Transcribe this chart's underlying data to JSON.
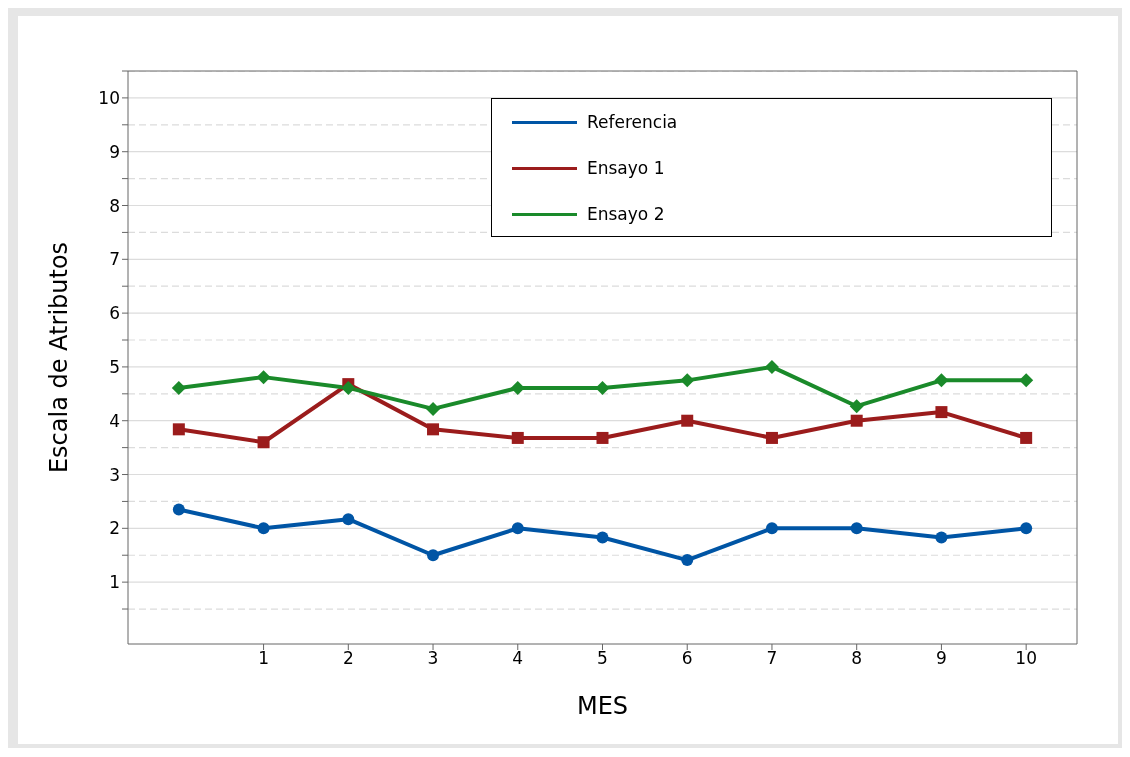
{
  "chart_data": {
    "type": "line",
    "xlabel": "MES",
    "ylabel": "Escala de Atributos",
    "x": [
      0,
      1,
      2,
      3,
      4,
      5,
      6,
      7,
      8,
      9,
      10
    ],
    "xlim": [
      -0.6,
      10.6
    ],
    "xticks": [
      1,
      2,
      3,
      4,
      5,
      6,
      7,
      8,
      9,
      10
    ],
    "ylim": [
      -0.15,
      10.5
    ],
    "yticks": [
      {
        "value": 0.5,
        "label": null
      },
      1,
      {
        "value": 1.5,
        "label": null
      },
      2,
      {
        "value": 2.5,
        "label": null
      },
      3,
      {
        "value": 3.5,
        "label": null
      },
      4,
      {
        "value": 4.5,
        "label": null
      },
      5,
      {
        "value": 5.5,
        "label": null
      },
      6,
      {
        "value": 6.5,
        "label": null
      },
      7,
      {
        "value": 7.5,
        "label": null
      },
      8,
      {
        "value": 8.5,
        "label": null
      },
      9,
      {
        "value": 9.5,
        "label": null
      },
      10,
      {
        "value": 10.5,
        "label": null
      }
    ],
    "grid": "y",
    "legend": "top right",
    "line_style": "solid",
    "series": [
      {
        "name": "Referencia",
        "color": "#0055a5",
        "marker": "circle",
        "values": [
          2.35,
          2.0,
          2.17,
          1.5,
          2.0,
          1.83,
          1.41,
          2.0,
          2.0,
          1.83,
          2.0
        ]
      },
      {
        "name": "Ensayo 1",
        "color": "#9b1c1c",
        "marker": "square",
        "values": [
          3.84,
          3.6,
          4.68,
          3.84,
          3.68,
          3.68,
          4.0,
          3.68,
          4.0,
          4.16,
          3.68
        ]
      },
      {
        "name": "Ensayo 2",
        "color": "#1a8a2a",
        "marker": "diamond",
        "values": [
          4.61,
          4.81,
          4.61,
          4.22,
          4.61,
          4.61,
          4.75,
          5.0,
          4.27,
          4.75,
          4.75
        ]
      }
    ]
  }
}
